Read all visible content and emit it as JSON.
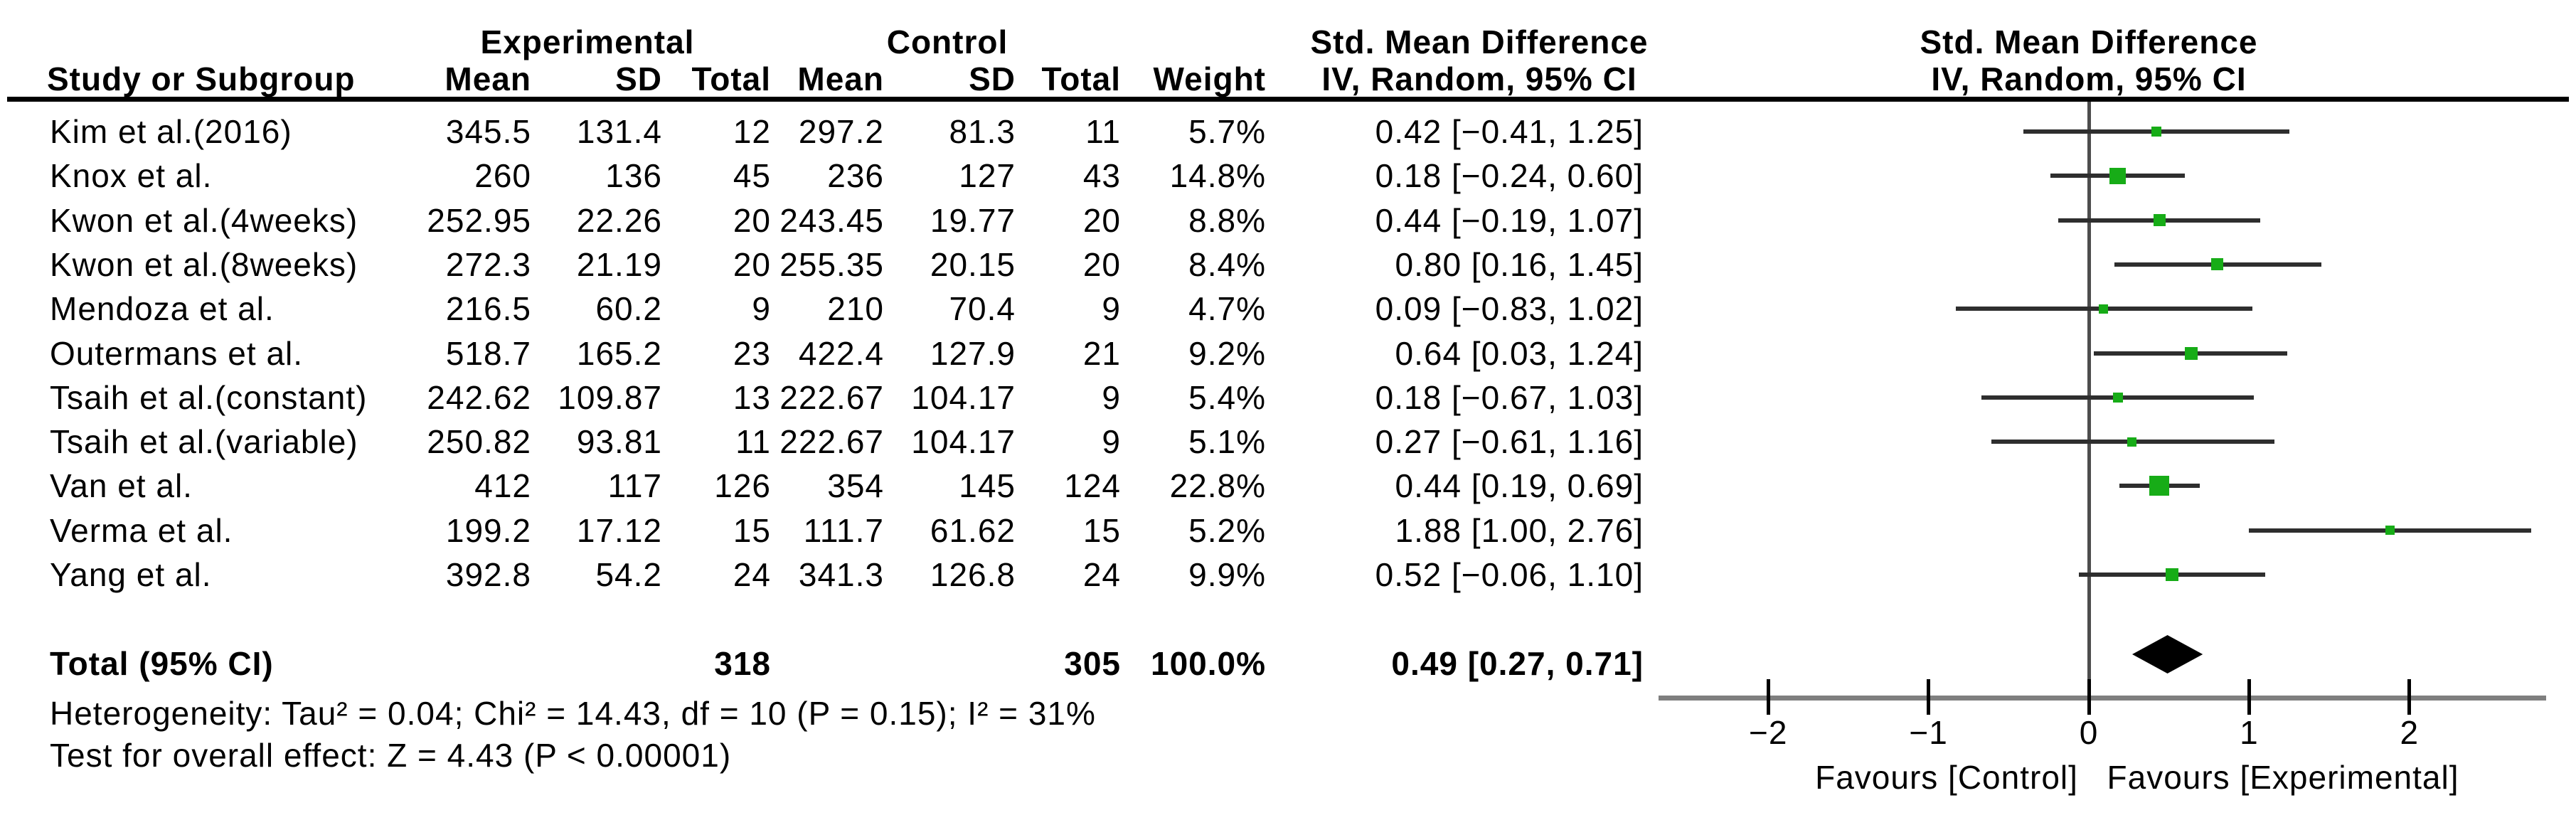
{
  "header": {
    "study": "Study or Subgroup",
    "group_exp": "Experimental",
    "group_ctl": "Control",
    "effect": "Std. Mean Difference",
    "method": "IV, Random, 95% CI",
    "mean": "Mean",
    "sd": "SD",
    "total": "Total",
    "weight": "Weight"
  },
  "rows": [
    {
      "study": "Kim et al.(2016)",
      "exp_mean": "345.5",
      "exp_sd": "131.4",
      "exp_total": "12",
      "ctl_mean": "297.2",
      "ctl_sd": "81.3",
      "ctl_total": "11",
      "weight": "5.7%",
      "ci_text": "0.42 [−0.41, 1.25]",
      "est": 0.42,
      "lo": -0.41,
      "hi": 1.25,
      "weight_pct": 5.7
    },
    {
      "study": "Knox et al.",
      "exp_mean": "260",
      "exp_sd": "136",
      "exp_total": "45",
      "ctl_mean": "236",
      "ctl_sd": "127",
      "ctl_total": "43",
      "weight": "14.8%",
      "ci_text": "0.18 [−0.24, 0.60]",
      "est": 0.18,
      "lo": -0.24,
      "hi": 0.6,
      "weight_pct": 14.8
    },
    {
      "study": "Kwon et al.(4weeks)",
      "exp_mean": "252.95",
      "exp_sd": "22.26",
      "exp_total": "20",
      "ctl_mean": "243.45",
      "ctl_sd": "19.77",
      "ctl_total": "20",
      "weight": "8.8%",
      "ci_text": "0.44 [−0.19, 1.07]",
      "est": 0.44,
      "lo": -0.19,
      "hi": 1.07,
      "weight_pct": 8.8
    },
    {
      "study": "Kwon et al.(8weeks)",
      "exp_mean": "272.3",
      "exp_sd": "21.19",
      "exp_total": "20",
      "ctl_mean": "255.35",
      "ctl_sd": "20.15",
      "ctl_total": "20",
      "weight": "8.4%",
      "ci_text": "0.80 [0.16, 1.45]",
      "est": 0.8,
      "lo": 0.16,
      "hi": 1.45,
      "weight_pct": 8.4
    },
    {
      "study": "Mendoza et al.",
      "exp_mean": "216.5",
      "exp_sd": "60.2",
      "exp_total": "9",
      "ctl_mean": "210",
      "ctl_sd": "70.4",
      "ctl_total": "9",
      "weight": "4.7%",
      "ci_text": "0.09 [−0.83, 1.02]",
      "est": 0.09,
      "lo": -0.83,
      "hi": 1.02,
      "weight_pct": 4.7
    },
    {
      "study": "Outermans et al.",
      "exp_mean": "518.7",
      "exp_sd": "165.2",
      "exp_total": "23",
      "ctl_mean": "422.4",
      "ctl_sd": "127.9",
      "ctl_total": "21",
      "weight": "9.2%",
      "ci_text": "0.64 [0.03, 1.24]",
      "est": 0.64,
      "lo": 0.03,
      "hi": 1.24,
      "weight_pct": 9.2
    },
    {
      "study": "Tsaih et al.(constant)",
      "exp_mean": "242.62",
      "exp_sd": "109.87",
      "exp_total": "13",
      "ctl_mean": "222.67",
      "ctl_sd": "104.17",
      "ctl_total": "9",
      "weight": "5.4%",
      "ci_text": "0.18 [−0.67, 1.03]",
      "est": 0.18,
      "lo": -0.67,
      "hi": 1.03,
      "weight_pct": 5.4
    },
    {
      "study": "Tsaih et al.(variable)",
      "exp_mean": "250.82",
      "exp_sd": "93.81",
      "exp_total": "11",
      "ctl_mean": "222.67",
      "ctl_sd": "104.17",
      "ctl_total": "9",
      "weight": "5.1%",
      "ci_text": "0.27 [−0.61, 1.16]",
      "est": 0.27,
      "lo": -0.61,
      "hi": 1.16,
      "weight_pct": 5.1
    },
    {
      "study": "Van et al.",
      "exp_mean": "412",
      "exp_sd": "117",
      "exp_total": "126",
      "ctl_mean": "354",
      "ctl_sd": "145",
      "ctl_total": "124",
      "weight": "22.8%",
      "ci_text": "0.44 [0.19, 0.69]",
      "est": 0.44,
      "lo": 0.19,
      "hi": 0.69,
      "weight_pct": 22.8
    },
    {
      "study": "Verma et al.",
      "exp_mean": "199.2",
      "exp_sd": "17.12",
      "exp_total": "15",
      "ctl_mean": "111.7",
      "ctl_sd": "61.62",
      "ctl_total": "15",
      "weight": "5.2%",
      "ci_text": "1.88 [1.00, 2.76]",
      "est": 1.88,
      "lo": 1.0,
      "hi": 2.76,
      "weight_pct": 5.2
    },
    {
      "study": "Yang et al.",
      "exp_mean": "392.8",
      "exp_sd": "54.2",
      "exp_total": "24",
      "ctl_mean": "341.3",
      "ctl_sd": "126.8",
      "ctl_total": "24",
      "weight": "9.9%",
      "ci_text": "0.52 [−0.06, 1.10]",
      "est": 0.52,
      "lo": -0.06,
      "hi": 1.1,
      "weight_pct": 9.9
    }
  ],
  "total_row": {
    "label": "Total (95% CI)",
    "exp_total": "318",
    "ctl_total": "305",
    "weight": "100.0%",
    "ci_text": "0.49 [0.27, 0.71]",
    "est": 0.49,
    "lo": 0.27,
    "hi": 0.71
  },
  "footnotes": {
    "heterogeneity": "Heterogeneity: Tau² = 0.04; Chi² = 14.43, df = 10 (P = 0.15); I² = 31%",
    "overall": "Test for overall effect: Z = 4.43 (P < 0.00001)"
  },
  "axis": {
    "ticks": [
      {
        "label": "−2",
        "value": -2
      },
      {
        "label": "−1",
        "value": -1
      },
      {
        "label": "0",
        "value": 0
      },
      {
        "label": "1",
        "value": 1
      },
      {
        "label": "2",
        "value": 2
      }
    ],
    "favours_left": "Favours [Control]",
    "favours_right": "Favours [Experimental]"
  },
  "colors": {
    "square": "#17ac17",
    "diamond": "#000000",
    "ci_line": "#2e2e2e",
    "axis_line": "#7f7f7f",
    "zero_line": "#4d4d4d",
    "rule": "#000000"
  },
  "chart_data": {
    "type": "scatter",
    "subtype": "forest-plot",
    "title": "Std. Mean Difference",
    "method": "IV, Random, 95% CI",
    "x_ticks": [
      -2,
      -1,
      0,
      1,
      2
    ],
    "xlim": [
      -2.7,
      2.9
    ],
    "xlabel_left": "Favours [Control]",
    "xlabel_right": "Favours [Experimental]",
    "studies": [
      "Kim et al.(2016)",
      "Knox et al.",
      "Kwon et al.(4weeks)",
      "Kwon et al.(8weeks)",
      "Mendoza et al.",
      "Outermans et al.",
      "Tsaih et al.(constant)",
      "Tsaih et al.(variable)",
      "Van et al.",
      "Verma et al.",
      "Yang et al."
    ],
    "estimates": [
      0.42,
      0.18,
      0.44,
      0.8,
      0.09,
      0.64,
      0.18,
      0.27,
      0.44,
      1.88,
      0.52
    ],
    "ci_low": [
      -0.41,
      -0.24,
      -0.19,
      0.16,
      -0.83,
      0.03,
      -0.67,
      -0.61,
      0.19,
      1.0,
      -0.06
    ],
    "ci_high": [
      1.25,
      0.6,
      1.07,
      1.45,
      1.02,
      1.24,
      1.03,
      1.16,
      0.69,
      2.76,
      1.1
    ],
    "weights_pct": [
      5.7,
      14.8,
      8.8,
      8.4,
      4.7,
      9.2,
      5.4,
      5.1,
      22.8,
      5.2,
      9.9
    ],
    "total": {
      "label": "Total (95% CI)",
      "estimate": 0.49,
      "ci_low": 0.27,
      "ci_high": 0.71
    }
  }
}
